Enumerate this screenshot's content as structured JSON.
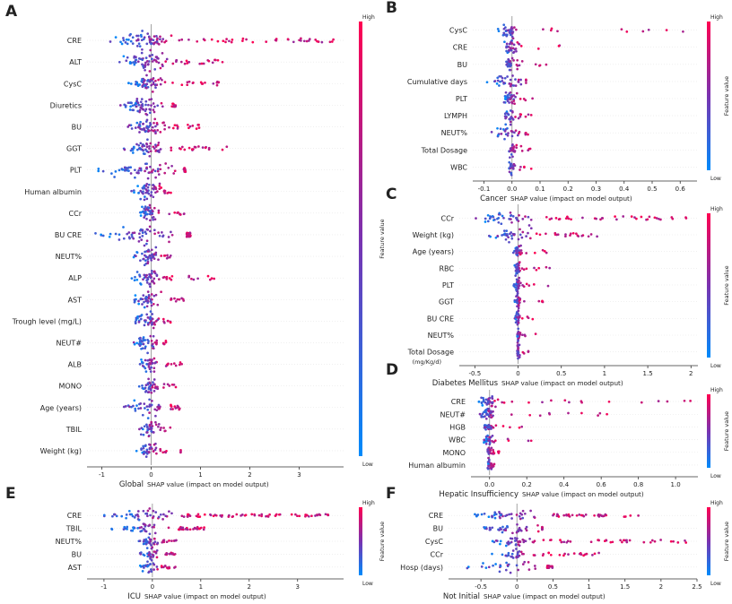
{
  "chart_data": [
    {
      "panel": "A",
      "type": "scatter",
      "subtype": "shap-beeswarm",
      "title": "Global",
      "xlabel": "SHAP value (impact on model output)",
      "xlim": [
        -1.3,
        3.9
      ],
      "xticks": [
        -1,
        0,
        1,
        2,
        3
      ],
      "colorbar": {
        "label": "Feature value",
        "high": "High",
        "low": "Low"
      },
      "features": [
        {
          "name": "CRE",
          "spread": [
            -0.9,
            3.7
          ]
        },
        {
          "name": "ALT",
          "spread": [
            -0.7,
            1.5
          ]
        },
        {
          "name": "CysC",
          "spread": [
            -0.5,
            1.4
          ]
        },
        {
          "name": "Diuretics",
          "spread": [
            -0.7,
            0.5
          ]
        },
        {
          "name": "BU",
          "spread": [
            -0.6,
            1.0
          ]
        },
        {
          "name": "GGT",
          "spread": [
            -0.6,
            1.6
          ]
        },
        {
          "name": "PLT",
          "spread": [
            -1.1,
            0.7
          ]
        },
        {
          "name": "Human albumin",
          "spread": [
            -0.4,
            0.4
          ]
        },
        {
          "name": "CCr",
          "spread": [
            -0.3,
            0.7
          ]
        },
        {
          "name": "BU CRE",
          "spread": [
            -1.2,
            0.8
          ]
        },
        {
          "name": "NEUT%",
          "spread": [
            -0.4,
            0.4
          ]
        },
        {
          "name": "ALP",
          "spread": [
            -0.4,
            1.4
          ]
        },
        {
          "name": "AST",
          "spread": [
            -0.4,
            0.7
          ]
        },
        {
          "name": "Trough level (mg/L)",
          "spread": [
            -0.4,
            0.4
          ]
        },
        {
          "name": "NEUT#",
          "spread": [
            -0.4,
            0.3
          ]
        },
        {
          "name": "ALB",
          "spread": [
            -0.3,
            0.8
          ]
        },
        {
          "name": "MONO",
          "spread": [
            -0.3,
            0.5
          ]
        },
        {
          "name": "Age (years)",
          "spread": [
            -0.6,
            0.6
          ]
        },
        {
          "name": "TBIL",
          "spread": [
            -0.3,
            0.4
          ]
        },
        {
          "name": "Weight (kg)",
          "spread": [
            -0.3,
            0.7
          ]
        }
      ]
    },
    {
      "panel": "B",
      "type": "scatter",
      "subtype": "shap-beeswarm",
      "title": "Cancer",
      "xlabel": "SHAP value (impact on model output)",
      "xlim": [
        -0.14,
        0.66
      ],
      "xticks": [
        -0.1,
        0.0,
        0.1,
        0.2,
        0.3,
        0.4,
        0.5,
        0.6
      ],
      "colorbar": {
        "label": "Feature value",
        "high": "High",
        "low": "Low"
      },
      "features": [
        {
          "name": "CysC",
          "spread": [
            -0.05,
            0.63
          ]
        },
        {
          "name": "CRE",
          "spread": [
            -0.03,
            0.18
          ]
        },
        {
          "name": "BU",
          "spread": [
            -0.02,
            0.15
          ]
        },
        {
          "name": "Cumulative days",
          "spread": [
            -0.1,
            0.05
          ]
        },
        {
          "name": "PLT",
          "spread": [
            -0.03,
            0.08
          ]
        },
        {
          "name": "LYMPH",
          "spread": [
            -0.04,
            0.08
          ]
        },
        {
          "name": "NEUT%",
          "spread": [
            -0.08,
            0.07
          ]
        },
        {
          "name": "Total Dosage",
          "spread": [
            -0.01,
            0.12
          ]
        },
        {
          "name": "WBC",
          "spread": [
            -0.01,
            0.1
          ]
        }
      ]
    },
    {
      "panel": "C",
      "type": "scatter",
      "subtype": "shap-beeswarm",
      "title": "Diabetes Mellitus",
      "xlabel": "SHAP value (impact on model output)",
      "xlim": [
        -0.68,
        2.08
      ],
      "xticks": [
        -0.5,
        0.0,
        0.5,
        1.0,
        1.5,
        2.0
      ],
      "colorbar": {
        "label": "Feature value",
        "high": "High",
        "low": "Low"
      },
      "features": [
        {
          "name": "CCr",
          "spread": [
            -0.55,
            1.95
          ]
        },
        {
          "name": "Weight (kg)",
          "spread": [
            -0.4,
            0.95
          ]
        },
        {
          "name": "Age (years)",
          "spread": [
            -0.06,
            0.45
          ]
        },
        {
          "name": "RBC",
          "spread": [
            -0.05,
            0.55
          ]
        },
        {
          "name": "PLT",
          "spread": [
            -0.06,
            0.35
          ]
        },
        {
          "name": "GGT",
          "spread": [
            -0.04,
            0.3
          ]
        },
        {
          "name": "BU CRE",
          "spread": [
            -0.04,
            0.22
          ]
        },
        {
          "name": "NEUT%",
          "spread": [
            -0.01,
            0.22
          ]
        },
        {
          "name": "Total Dosage",
          "spread": [
            -0.01,
            0.22
          ]
        }
      ],
      "extra_label": "(mg/Kg/d)"
    },
    {
      "panel": "D",
      "type": "scatter",
      "subtype": "shap-beeswarm",
      "title": "Hepatic Insufficiency",
      "xlabel": "SHAP value (impact on model output)",
      "xlim": [
        -0.1,
        1.12
      ],
      "xticks": [
        0.0,
        0.2,
        0.4,
        0.6,
        0.8,
        1.0
      ],
      "colorbar": {
        "label": "Feature value",
        "high": "High",
        "low": "Low"
      },
      "features": [
        {
          "name": "CRE",
          "spread": [
            -0.07,
            1.08
          ]
        },
        {
          "name": "NEUT#",
          "spread": [
            -0.06,
            0.67
          ]
        },
        {
          "name": "HGB",
          "spread": [
            -0.03,
            0.25
          ]
        },
        {
          "name": "WBC",
          "spread": [
            -0.03,
            0.35
          ]
        },
        {
          "name": "MONO",
          "spread": [
            -0.01,
            0.07
          ]
        },
        {
          "name": "Human albumin",
          "spread": [
            -0.01,
            0.01
          ]
        }
      ]
    },
    {
      "panel": "E",
      "type": "scatter",
      "subtype": "shap-beeswarm",
      "title": "ICU",
      "xlabel": "SHAP value (impact on model output)",
      "xlim": [
        -1.35,
        3.95
      ],
      "xticks": [
        -1,
        0,
        1,
        2,
        3
      ],
      "colorbar": {
        "label": "Feature value",
        "high": "High",
        "low": "Low"
      },
      "features": [
        {
          "name": "CRE",
          "spread": [
            -1.0,
            3.7
          ]
        },
        {
          "name": "TBIL",
          "spread": [
            -0.9,
            1.1
          ]
        },
        {
          "name": "NEUT%",
          "spread": [
            -0.3,
            0.5
          ]
        },
        {
          "name": "BU",
          "spread": [
            -0.3,
            0.5
          ]
        },
        {
          "name": "AST",
          "spread": [
            -0.3,
            0.5
          ]
        }
      ]
    },
    {
      "panel": "F",
      "type": "scatter",
      "subtype": "shap-beeswarm",
      "title": "Not Initial",
      "xlabel": "SHAP value (impact on model output)",
      "xlim": [
        -0.95,
        2.5
      ],
      "xticks": [
        -0.5,
        0.0,
        0.5,
        1.0,
        1.5,
        2.0,
        2.5
      ],
      "colorbar": {
        "label": "Feature value",
        "high": "High",
        "low": "Low"
      },
      "features": [
        {
          "name": "CRE",
          "spread": [
            -0.8,
            1.7
          ]
        },
        {
          "name": "BU",
          "spread": [
            -0.8,
            0.35
          ]
        },
        {
          "name": "CysC",
          "spread": [
            -0.35,
            2.4
          ]
        },
        {
          "name": "CCr",
          "spread": [
            -0.35,
            1.2
          ]
        },
        {
          "name": "Hosp (days)",
          "spread": [
            -0.7,
            0.5
          ]
        }
      ]
    }
  ],
  "colors": {
    "high": "#ff0051",
    "low": "#008bfb",
    "mid": "#7a32b0"
  }
}
